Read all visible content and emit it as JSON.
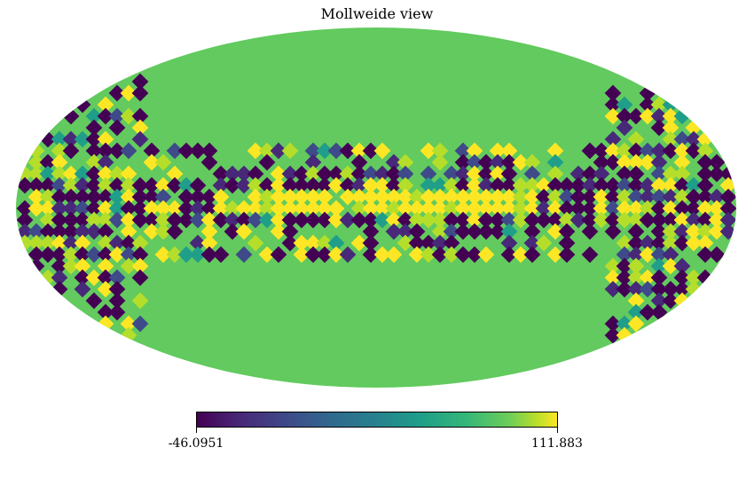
{
  "title": "Mollweide view",
  "chart_data": {
    "type": "heatmap",
    "projection": "mollweide",
    "title": "Mollweide view",
    "colormap": "viridis",
    "colorbar": {
      "min": -46.0951,
      "max": 111.883,
      "min_label": "-46.0951",
      "max_label": "111.883"
    },
    "background_value_color": "#62ca5e",
    "description_colors": {
      "low": "#440154",
      "mid": "#21918c",
      "high": "#fde725",
      "background": "#62ca5e"
    }
  }
}
